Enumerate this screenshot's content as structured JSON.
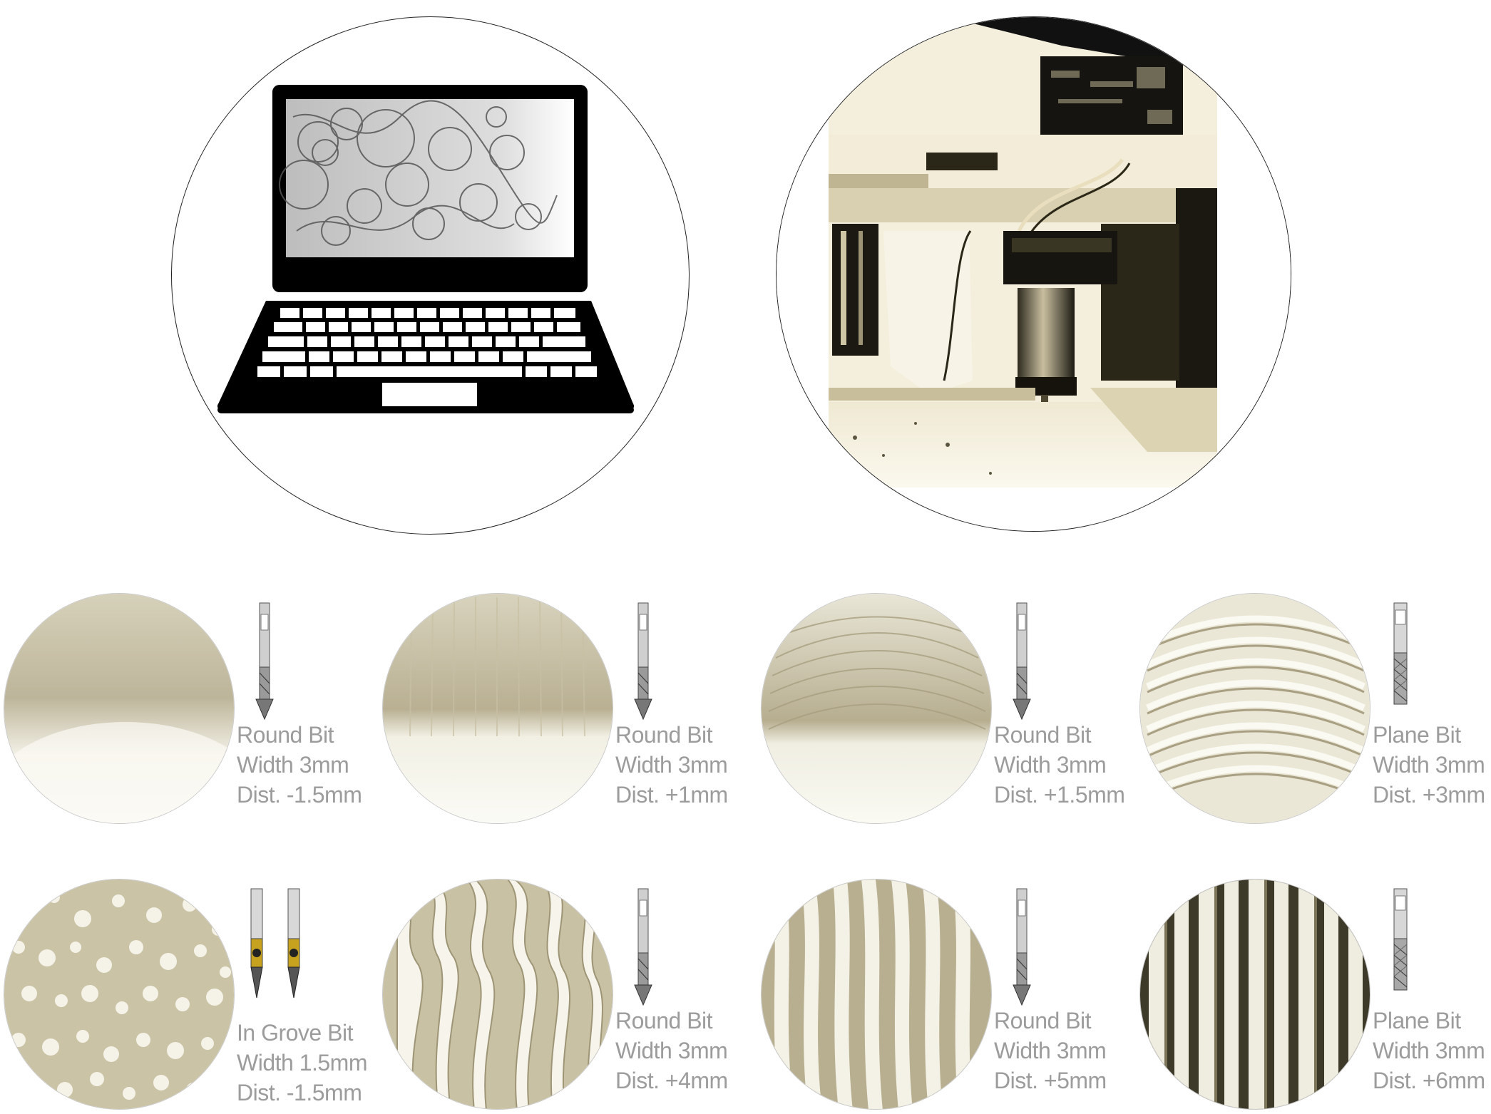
{
  "illustrations": {
    "laptop": "laptop-icon",
    "cnc_machine": "cnc-router-photo"
  },
  "samples": [
    {
      "bit": "Round Bit",
      "width": "Width 3mm",
      "dist": "Dist. -1.5mm",
      "bit_icon": "round-bit-icon",
      "texture": "smooth-gradient"
    },
    {
      "bit": "Round Bit",
      "width": "Width 3mm",
      "dist": "Dist. +1mm",
      "bit_icon": "round-bit-icon",
      "texture": "light-ridges"
    },
    {
      "bit": "Round Bit",
      "width": "Width 3mm",
      "dist": "Dist. +1.5mm",
      "bit_icon": "round-bit-icon",
      "texture": "fine-arcs"
    },
    {
      "bit": "Plane Bit",
      "width": "Width 3mm",
      "dist": "Dist. +3mm",
      "bit_icon": "plane-bit-icon",
      "texture": "concentric-arcs"
    },
    {
      "bit": "In Grove Bit",
      "width": "Width 1.5mm",
      "dist": "Dist. -1.5mm",
      "bit_icon": "in-groove-bit-icon",
      "texture": "speckle"
    },
    {
      "bit": "Round Bit",
      "width": "Width 3mm",
      "dist": "Dist. +4mm",
      "bit_icon": "round-bit-icon",
      "texture": "wavy-ribbons"
    },
    {
      "bit": "Round Bit",
      "width": "Width 3mm",
      "dist": "Dist. +5mm",
      "bit_icon": "round-bit-icon",
      "texture": "vertical-fins"
    },
    {
      "bit": "Plane Bit",
      "width": "Width 3mm",
      "dist": "Dist. +6mm",
      "bit_icon": "plane-bit-icon",
      "texture": "vertical-slats"
    }
  ],
  "colors": {
    "label": "#9c9c9c",
    "material": "#e6e2d2",
    "material_shadow": "#bdb59a",
    "outline": "#222222"
  }
}
